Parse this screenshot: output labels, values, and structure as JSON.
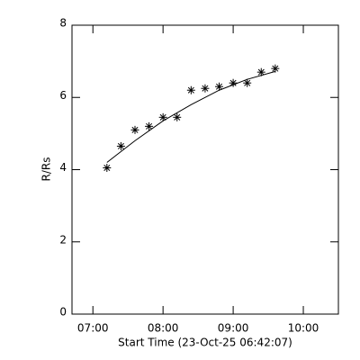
{
  "chart_data": {
    "type": "scatter",
    "xlabel": "Start Time (23-Oct-25 06:42:07)",
    "ylabel": "R/Rs",
    "xlim": [
      6.702,
      10.5
    ],
    "ylim": [
      0,
      8
    ],
    "xticks": [
      {
        "value": 7,
        "label": "07:00"
      },
      {
        "value": 8,
        "label": "08:00"
      },
      {
        "value": 9,
        "label": "09:00"
      },
      {
        "value": 10,
        "label": "10:00"
      }
    ],
    "yticks": [
      0,
      2,
      4,
      6,
      8
    ],
    "color": "#000000",
    "series": [
      {
        "mode": "markers",
        "x": [
          7.2,
          7.4,
          7.6,
          7.8,
          8.0,
          8.2,
          8.4,
          8.6,
          8.8,
          9.0,
          9.2,
          9.4,
          9.6
        ],
        "values": [
          4.05,
          4.65,
          5.1,
          5.2,
          5.45,
          5.45,
          6.2,
          6.25,
          6.3,
          6.4,
          6.4,
          6.7,
          6.8
        ]
      },
      {
        "mode": "line",
        "x": [
          7.2,
          7.6,
          8.0,
          8.4,
          8.8,
          9.2,
          9.6
        ],
        "values": [
          4.2,
          4.8,
          5.35,
          5.8,
          6.2,
          6.5,
          6.72
        ]
      }
    ]
  }
}
